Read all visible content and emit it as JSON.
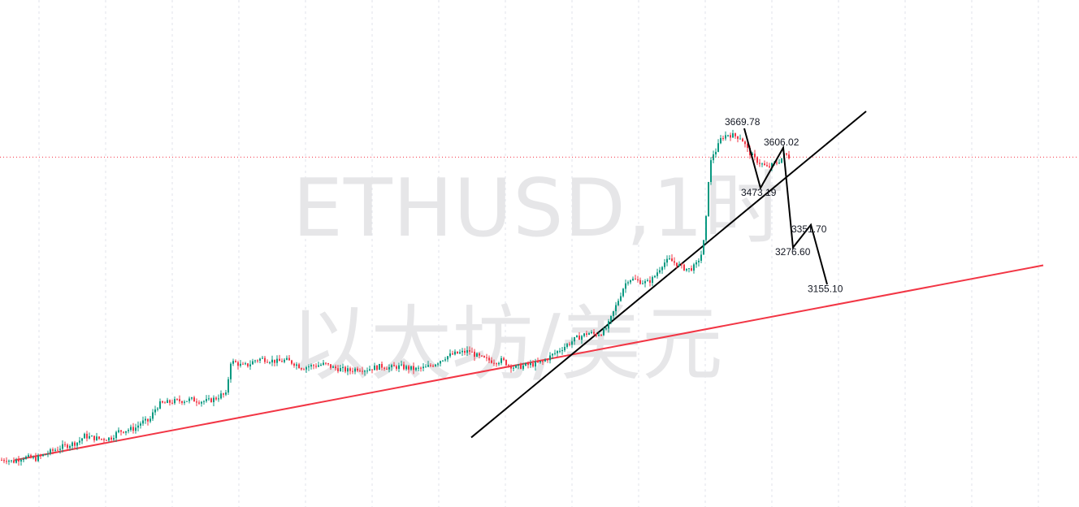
{
  "chart_data": {
    "type": "candlestick",
    "watermark": {
      "symbol_line": "ETHUSD,1时",
      "name_line": "以太坊/美元"
    },
    "interval": "1时",
    "colors": {
      "up": "#089981",
      "down": "#f23645",
      "trendline_support": "#f23645",
      "trendline_channel": "#000000",
      "projection": "#000000",
      "grid": "#e0e3eb",
      "current_price_line": "#f23645",
      "label_text": "#131722"
    },
    "grid": "dashed-vertical",
    "current_price_line": {
      "style": "dotted",
      "price": 3575
    },
    "ylim": [
      2340,
      3730
    ],
    "path_points": [
      [
        0,
        2575
      ],
      [
        8,
        2578
      ],
      [
        16,
        2570
      ],
      [
        28,
        2585
      ],
      [
        44,
        2580
      ],
      [
        60,
        2600
      ],
      [
        72,
        2615
      ],
      [
        84,
        2625
      ],
      [
        96,
        2635
      ],
      [
        104,
        2655
      ],
      [
        112,
        2650
      ],
      [
        124,
        2645
      ],
      [
        136,
        2648
      ],
      [
        146,
        2670
      ],
      [
        156,
        2675
      ],
      [
        166,
        2680
      ],
      [
        174,
        2700
      ],
      [
        184,
        2705
      ],
      [
        190,
        2740
      ],
      [
        196,
        2760
      ],
      [
        206,
        2765
      ],
      [
        216,
        2770
      ],
      [
        226,
        2772
      ],
      [
        236,
        2775
      ],
      [
        246,
        2770
      ],
      [
        256,
        2770
      ],
      [
        266,
        2780
      ],
      [
        272,
        2790
      ],
      [
        278,
        2790
      ],
      [
        284,
        2900
      ],
      [
        292,
        2895
      ],
      [
        298,
        2885
      ],
      [
        306,
        2890
      ],
      [
        314,
        2905
      ],
      [
        322,
        2910
      ],
      [
        332,
        2905
      ],
      [
        342,
        2900
      ],
      [
        352,
        2905
      ],
      [
        362,
        2895
      ],
      [
        372,
        2880
      ],
      [
        380,
        2885
      ],
      [
        390,
        2888
      ],
      [
        400,
        2892
      ],
      [
        410,
        2880
      ],
      [
        420,
        2875
      ],
      [
        430,
        2870
      ],
      [
        440,
        2878
      ],
      [
        450,
        2874
      ],
      [
        460,
        2880
      ],
      [
        470,
        2885
      ],
      [
        480,
        2880
      ],
      [
        490,
        2884
      ],
      [
        500,
        2880
      ],
      [
        512,
        2875
      ],
      [
        524,
        2880
      ],
      [
        536,
        2895
      ],
      [
        548,
        2915
      ],
      [
        558,
        2925
      ],
      [
        568,
        2930
      ],
      [
        578,
        2935
      ],
      [
        586,
        2920
      ],
      [
        594,
        2910
      ],
      [
        602,
        2905
      ],
      [
        610,
        2900
      ],
      [
        618,
        2905
      ],
      [
        626,
        2890
      ],
      [
        634,
        2880
      ],
      [
        642,
        2885
      ],
      [
        652,
        2890
      ],
      [
        660,
        2893
      ],
      [
        668,
        2900
      ],
      [
        676,
        2915
      ],
      [
        684,
        2930
      ],
      [
        692,
        2945
      ],
      [
        700,
        2960
      ],
      [
        708,
        2975
      ],
      [
        716,
        2985
      ],
      [
        724,
        2995
      ],
      [
        734,
        2990
      ],
      [
        744,
        3000
      ],
      [
        750,
        3030
      ],
      [
        756,
        3070
      ],
      [
        762,
        3110
      ],
      [
        768,
        3150
      ],
      [
        774,
        3175
      ],
      [
        780,
        3170
      ],
      [
        788,
        3165
      ],
      [
        796,
        3160
      ],
      [
        804,
        3175
      ],
      [
        810,
        3200
      ],
      [
        816,
        3225
      ],
      [
        824,
        3235
      ],
      [
        832,
        3225
      ],
      [
        840,
        3210
      ],
      [
        848,
        3205
      ],
      [
        856,
        3215
      ],
      [
        864,
        3260
      ],
      [
        868,
        3330
      ],
      [
        872,
        3500
      ],
      [
        876,
        3580
      ],
      [
        882,
        3600
      ],
      [
        888,
        3640
      ],
      [
        896,
        3650
      ],
      [
        904,
        3645
      ],
      [
        912,
        3640
      ],
      [
        920,
        3600
      ],
      [
        928,
        3570
      ],
      [
        936,
        3555
      ],
      [
        944,
        3540
      ],
      [
        952,
        3550
      ],
      [
        960,
        3565
      ],
      [
        966,
        3585
      ],
      [
        972,
        3575
      ]
    ],
    "trendlines": [
      {
        "name": "support",
        "from": [
          18,
          2575
        ],
        "to": [
          1284,
          3218
        ]
      },
      {
        "name": "channel",
        "from": [
          580,
          2650
        ],
        "to": [
          1066,
          3726
        ]
      }
    ],
    "projection_path": [
      [
        916,
        3669.78
      ],
      [
        936,
        3473.19
      ],
      [
        964,
        3606.02
      ],
      [
        976,
        3276.6
      ],
      [
        998,
        3351.7
      ],
      [
        1018,
        3155.1
      ]
    ],
    "annotations": [
      {
        "text": "3669.78",
        "at": [
          892,
          3680
        ]
      },
      {
        "text": "3606.02",
        "at": [
          940,
          3613
        ]
      },
      {
        "text": "3473.19",
        "at": [
          912,
          3447
        ]
      },
      {
        "text": "3351.70",
        "at": [
          974,
          3326
        ]
      },
      {
        "text": "3276.60",
        "at": [
          954,
          3251
        ]
      },
      {
        "text": "3155.10",
        "at": [
          994,
          3130
        ]
      }
    ]
  }
}
